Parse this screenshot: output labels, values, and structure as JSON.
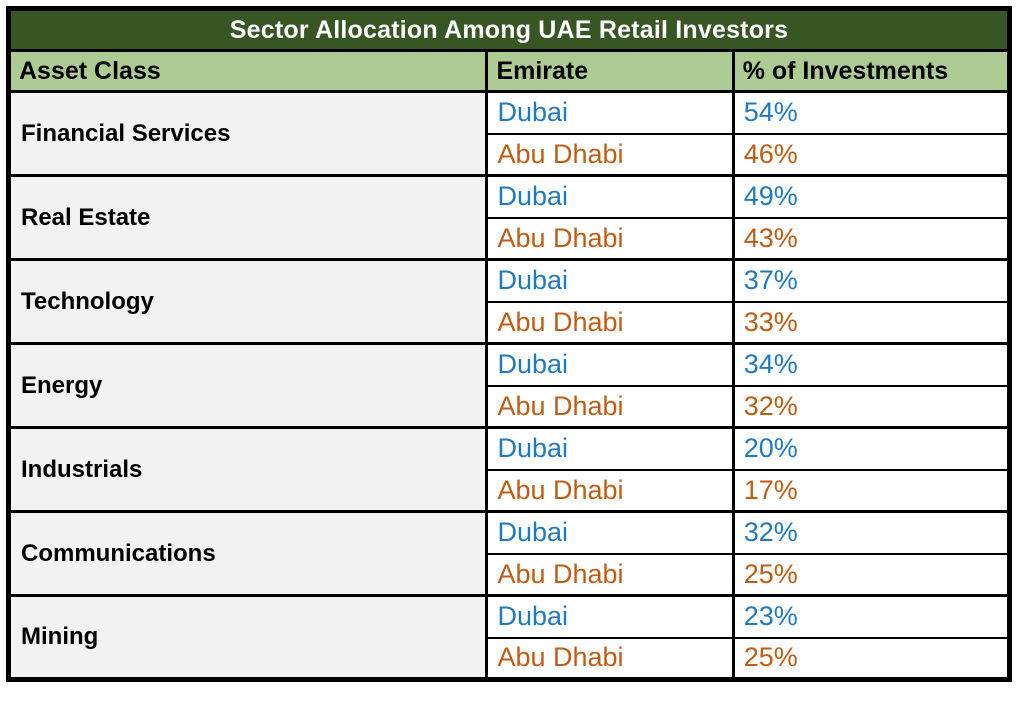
{
  "title": "Sector Allocation Among UAE Retail Investors",
  "columns": {
    "asset_class": "Asset Class",
    "emirate": "Emirate",
    "value": "% of Investments"
  },
  "colors": {
    "title_background": "#375623",
    "header_background": "#aecb93",
    "asset_cell_background": "#f2f2f2",
    "dubai_text": "#1e7ac2",
    "abu_dhabi_text": "#c25c15",
    "border": "#000000"
  },
  "chart_data": {
    "type": "table",
    "title": "Sector Allocation Among UAE Retail Investors",
    "columns": [
      "Asset Class",
      "Emirate",
      "% of Investments"
    ],
    "groups": [
      {
        "asset_class": "Financial Services",
        "entries": [
          {
            "emirate": "Dubai",
            "value": "54%"
          },
          {
            "emirate": "Abu Dhabi",
            "value": "46%"
          }
        ]
      },
      {
        "asset_class": "Real Estate",
        "entries": [
          {
            "emirate": "Dubai",
            "value": "49%"
          },
          {
            "emirate": "Abu Dhabi",
            "value": "43%"
          }
        ]
      },
      {
        "asset_class": "Technology",
        "entries": [
          {
            "emirate": "Dubai",
            "value": "37%"
          },
          {
            "emirate": "Abu Dhabi",
            "value": "33%"
          }
        ]
      },
      {
        "asset_class": "Energy",
        "entries": [
          {
            "emirate": "Dubai",
            "value": "34%"
          },
          {
            "emirate": "Abu Dhabi",
            "value": "32%"
          }
        ]
      },
      {
        "asset_class": "Industrials",
        "entries": [
          {
            "emirate": "Dubai",
            "value": "20%"
          },
          {
            "emirate": "Abu Dhabi",
            "value": "17%"
          }
        ]
      },
      {
        "asset_class": "Communications",
        "entries": [
          {
            "emirate": "Dubai",
            "value": "32%"
          },
          {
            "emirate": "Abu Dhabi",
            "value": "25%"
          }
        ]
      },
      {
        "asset_class": "Mining",
        "entries": [
          {
            "emirate": "Dubai",
            "value": "23%"
          },
          {
            "emirate": "Abu Dhabi",
            "value": "25%"
          }
        ]
      }
    ]
  }
}
